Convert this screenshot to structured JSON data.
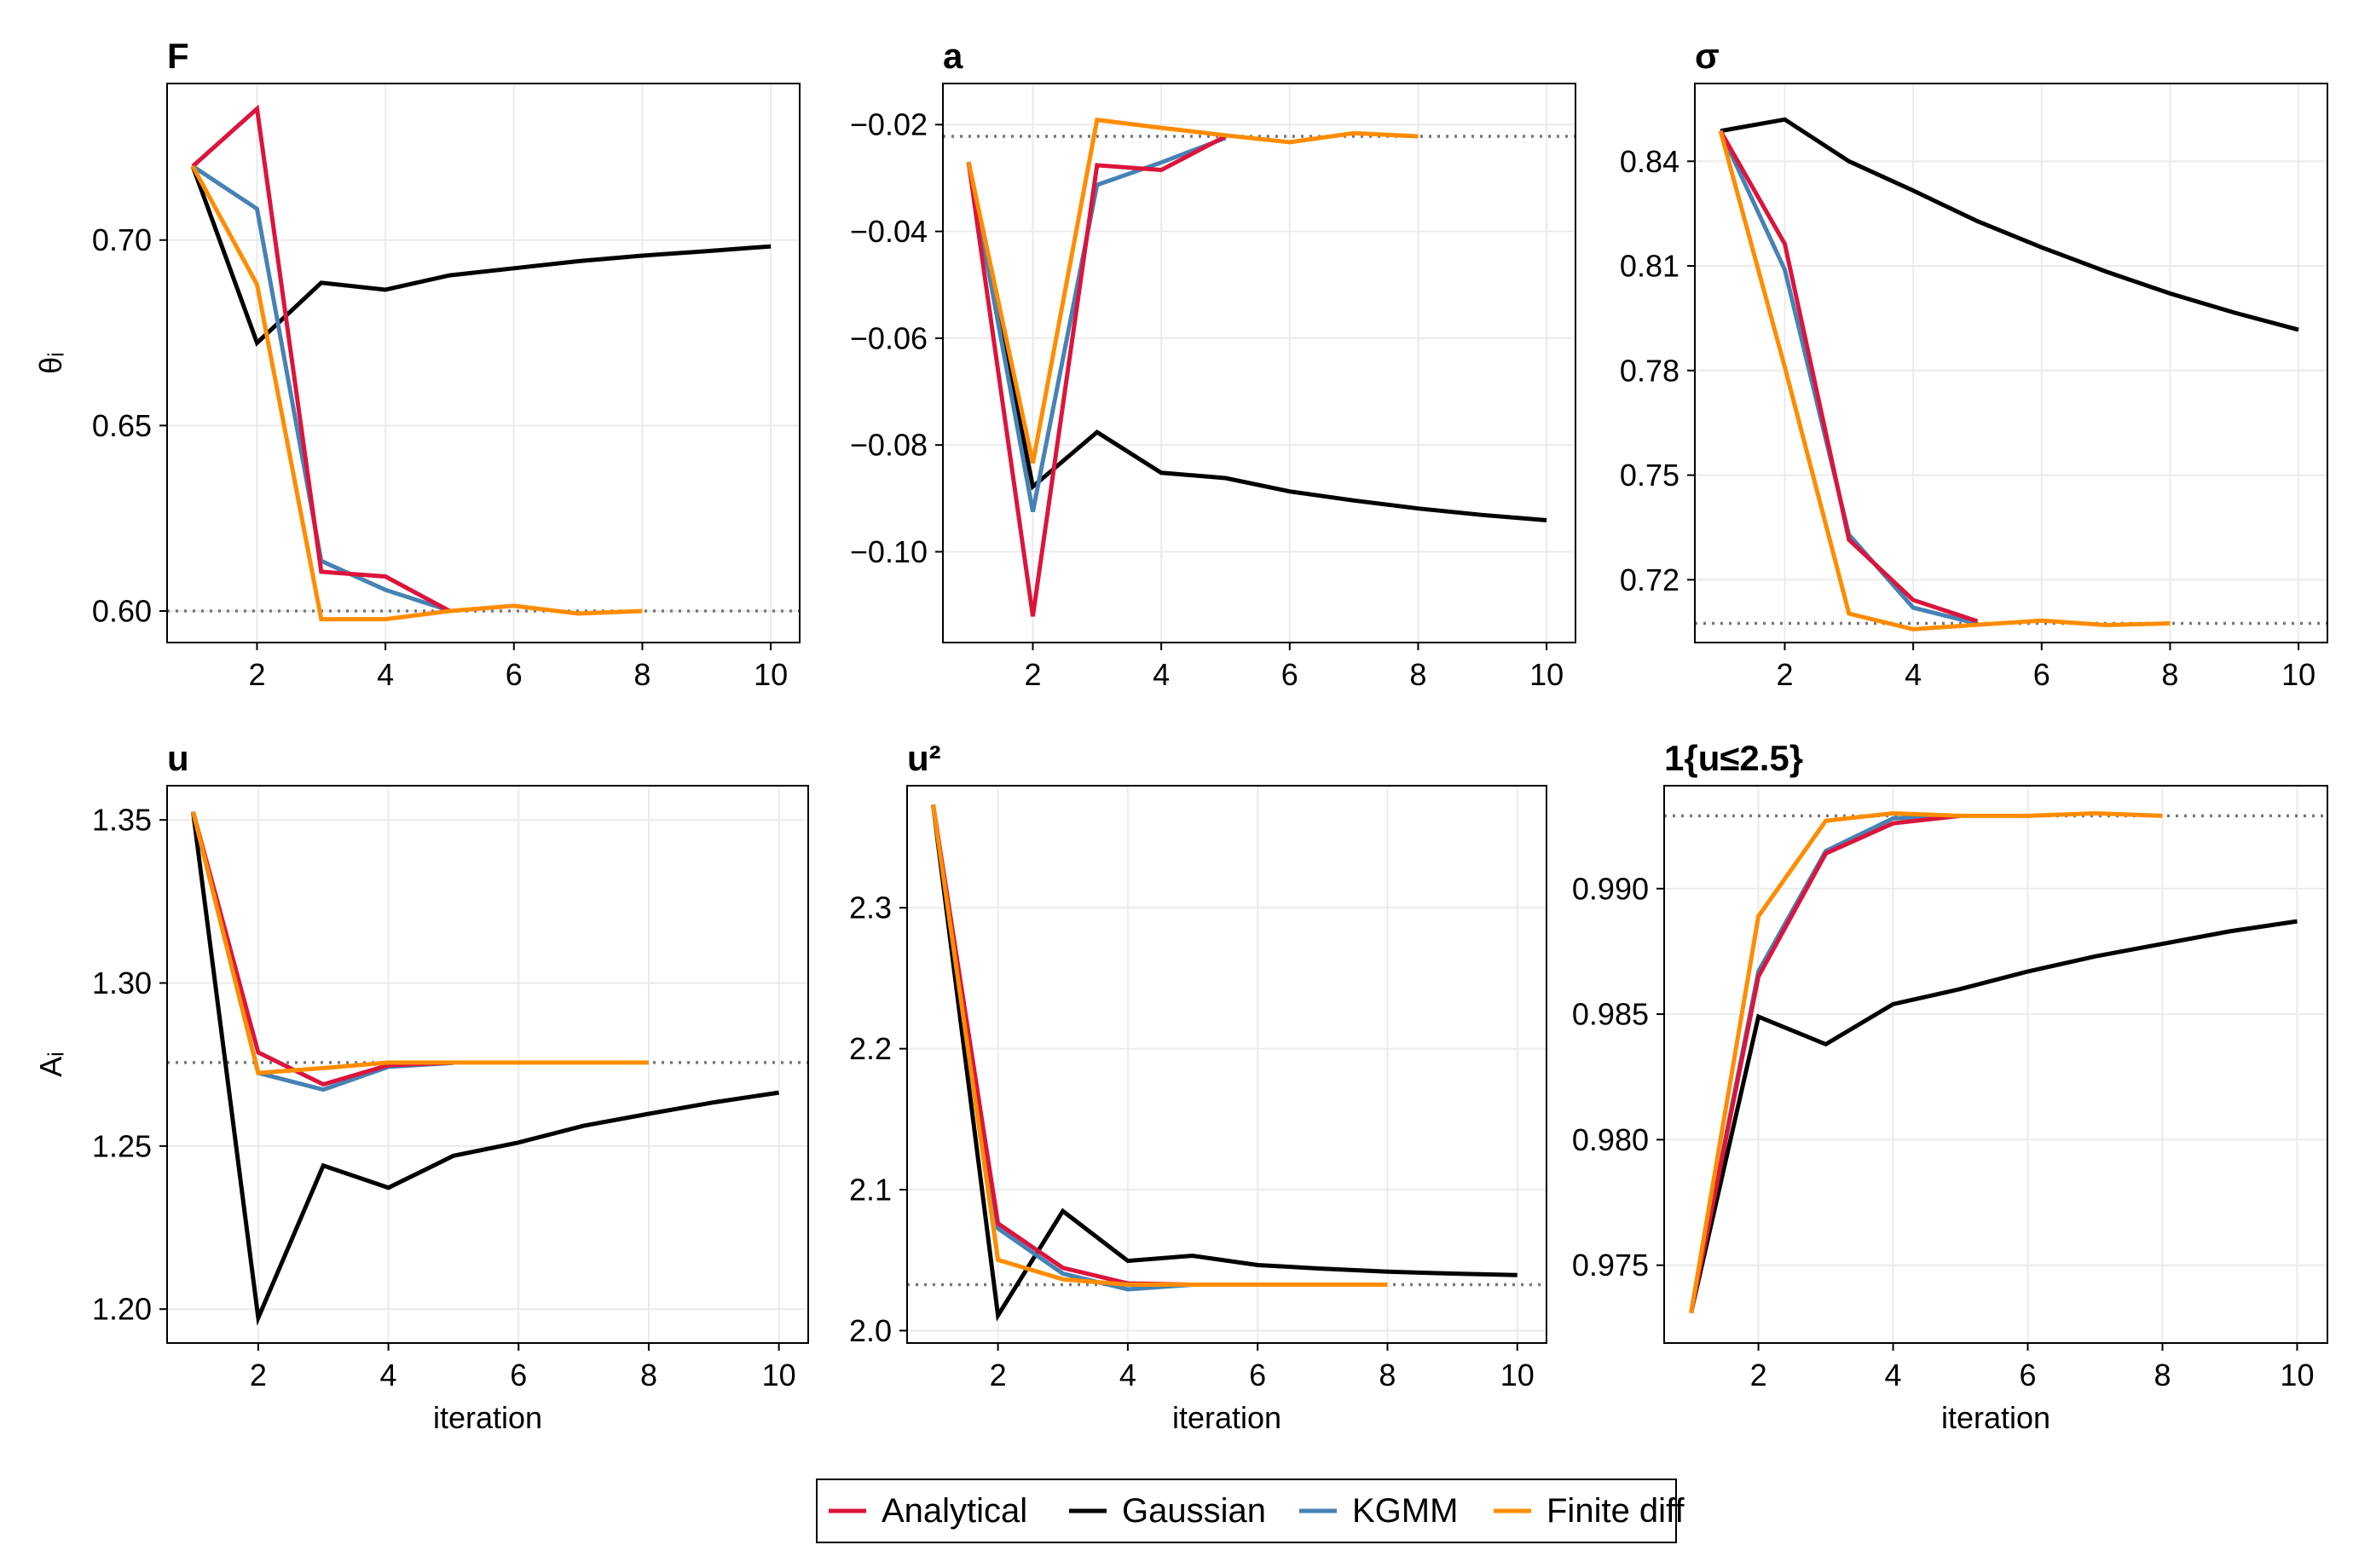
{
  "colors": {
    "Analytical": "#dc143c",
    "Gaussian": "#000000",
    "KGMM": "#4682b4",
    "Finite diff": "#ff8c00",
    "reference": "#777777"
  },
  "legend": {
    "entries": [
      "Analytical",
      "Gaussian",
      "KGMM",
      "Finite diff"
    ],
    "placement": "bottom-center"
  },
  "chart_data": [
    {
      "type": "line",
      "title": "F",
      "xlabel": "",
      "ylabel": "θᵢ",
      "xlim": [
        0.6,
        10.45
      ],
      "ylim": [
        0.5915,
        0.7422
      ],
      "xticks": [
        2,
        4,
        6,
        8,
        10
      ],
      "xtick_labels": [
        "2",
        "4",
        "6",
        "8",
        "10"
      ],
      "yticks": [
        0.6,
        0.65,
        0.7
      ],
      "ytick_labels": [
        "0.60",
        "0.65",
        "0.70"
      ],
      "reference": 0.6,
      "series": [
        {
          "name": "Analytical",
          "x": [
            1,
            2,
            3,
            4,
            5
          ],
          "values": [
            0.7199,
            0.7354,
            0.6106,
            0.6093,
            0.6
          ]
        },
        {
          "name": "Gaussian",
          "x": [
            1,
            2,
            3,
            4,
            5,
            6,
            7,
            8,
            9,
            10
          ],
          "values": [
            0.7199,
            0.6723,
            0.6885,
            0.6866,
            0.6905,
            0.6924,
            0.6943,
            0.6958,
            0.697,
            0.6983
          ]
        },
        {
          "name": "KGMM",
          "x": [
            1,
            2,
            3,
            4,
            5
          ],
          "values": [
            0.7199,
            0.7084,
            0.6135,
            0.6057,
            0.6001
          ]
        },
        {
          "name": "Finite diff",
          "x": [
            1,
            2,
            3,
            4,
            5,
            6,
            7,
            8
          ],
          "values": [
            0.7199,
            0.688,
            0.5978,
            0.5978,
            0.6,
            0.6014,
            0.5993,
            0.6
          ]
        }
      ]
    },
    {
      "type": "line",
      "title": "a",
      "xlabel": "",
      "ylabel": "",
      "xlim": [
        0.6,
        10.45
      ],
      "ylim": [
        -0.117,
        -0.0123
      ],
      "xticks": [
        2,
        4,
        6,
        8,
        10
      ],
      "xtick_labels": [
        "2",
        "4",
        "6",
        "8",
        "10"
      ],
      "yticks": [
        -0.1,
        -0.08,
        -0.06,
        -0.04,
        -0.02
      ],
      "ytick_labels": [
        "−0.10",
        "−0.08",
        "−0.06",
        "−0.04",
        "−0.02"
      ],
      "reference": -0.0222,
      "series": [
        {
          "name": "Analytical",
          "x": [
            1,
            2,
            3,
            4,
            5
          ],
          "values": [
            -0.027,
            -0.1121,
            -0.0276,
            -0.0285,
            -0.0222
          ]
        },
        {
          "name": "Gaussian",
          "x": [
            1,
            2,
            3,
            4,
            5,
            6,
            7,
            8,
            9,
            10
          ],
          "values": [
            -0.027,
            -0.0878,
            -0.0776,
            -0.0852,
            -0.0862,
            -0.0887,
            -0.0904,
            -0.0919,
            -0.0931,
            -0.0941
          ]
        },
        {
          "name": "KGMM",
          "x": [
            1,
            2,
            3,
            4,
            5
          ],
          "values": [
            -0.027,
            -0.0925,
            -0.0313,
            -0.0271,
            -0.0225
          ]
        },
        {
          "name": "Finite diff",
          "x": [
            1,
            2,
            3,
            4,
            5,
            6,
            7,
            8
          ],
          "values": [
            -0.027,
            -0.0834,
            -0.0191,
            -0.0206,
            -0.022,
            -0.0233,
            -0.0216,
            -0.0222
          ]
        }
      ]
    },
    {
      "type": "line",
      "title": "σ",
      "xlabel": "",
      "ylabel": "",
      "xlim": [
        0.6,
        10.45
      ],
      "ylim": [
        0.702,
        0.8623
      ],
      "xticks": [
        2,
        4,
        6,
        8,
        10
      ],
      "xtick_labels": [
        "2",
        "4",
        "6",
        "8",
        "10"
      ],
      "yticks": [
        0.72,
        0.75,
        0.78,
        0.81,
        0.84
      ],
      "ytick_labels": [
        "0.72",
        "0.75",
        "0.78",
        "0.81",
        "0.84"
      ],
      "reference": 0.7075,
      "series": [
        {
          "name": "Analytical",
          "x": [
            1,
            2,
            3,
            4,
            5
          ],
          "values": [
            0.8487,
            0.8163,
            0.7315,
            0.7142,
            0.7081
          ]
        },
        {
          "name": "Gaussian",
          "x": [
            1,
            2,
            3,
            4,
            5,
            6,
            7,
            8,
            9,
            10
          ],
          "values": [
            0.8487,
            0.852,
            0.84,
            0.8316,
            0.8228,
            0.8153,
            0.8084,
            0.8021,
            0.7966,
            0.7917
          ]
        },
        {
          "name": "KGMM",
          "x": [
            1,
            2,
            3,
            4,
            5
          ],
          "values": [
            0.8487,
            0.8089,
            0.7329,
            0.712,
            0.7074
          ]
        },
        {
          "name": "Finite diff",
          "x": [
            1,
            2,
            3,
            4,
            5,
            6,
            7,
            8
          ],
          "values": [
            0.8487,
            0.781,
            0.7103,
            0.7058,
            0.7071,
            0.7083,
            0.707,
            0.7075
          ]
        }
      ]
    },
    {
      "type": "line",
      "title": "u",
      "xlabel": "iteration",
      "ylabel": "Aᵢ",
      "xlim": [
        0.6,
        10.45
      ],
      "ylim": [
        1.1896,
        1.3605
      ],
      "xticks": [
        2,
        4,
        6,
        8,
        10
      ],
      "xtick_labels": [
        "2",
        "4",
        "6",
        "8",
        "10"
      ],
      "yticks": [
        1.2,
        1.25,
        1.3,
        1.35
      ],
      "ytick_labels": [
        "1.20",
        "1.25",
        "1.30",
        "1.35"
      ],
      "reference": 1.2756,
      "series": [
        {
          "name": "Analytical",
          "x": [
            1,
            2,
            3,
            4,
            5
          ],
          "values": [
            1.3525,
            1.2787,
            1.2689,
            1.2748,
            1.2756
          ]
        },
        {
          "name": "Gaussian",
          "x": [
            1,
            2,
            3,
            4,
            5,
            6,
            7,
            8,
            9,
            10
          ],
          "values": [
            1.3525,
            1.1973,
            1.244,
            1.2372,
            1.247,
            1.2511,
            1.2562,
            1.2599,
            1.2634,
            1.2664
          ]
        },
        {
          "name": "KGMM",
          "x": [
            1,
            2,
            3,
            4,
            5
          ],
          "values": [
            1.3525,
            1.2724,
            1.2673,
            1.2743,
            1.2755
          ]
        },
        {
          "name": "Finite diff",
          "x": [
            1,
            2,
            3,
            4,
            5,
            6,
            7,
            8
          ],
          "values": [
            1.3525,
            1.2724,
            1.2739,
            1.2756,
            1.2756,
            1.2756,
            1.2756,
            1.2756
          ]
        }
      ]
    },
    {
      "type": "line",
      "title": "u²",
      "xlabel": "iteration",
      "ylabel": "",
      "xlim": [
        0.6,
        10.45
      ],
      "ylim": [
        1.9912,
        2.3866
      ],
      "xticks": [
        2,
        4,
        6,
        8,
        10
      ],
      "xtick_labels": [
        "2",
        "4",
        "6",
        "8",
        "10"
      ],
      "yticks": [
        2.0,
        2.1,
        2.2,
        2.3
      ],
      "ytick_labels": [
        "2.0",
        "2.1",
        "2.2",
        "2.3"
      ],
      "reference": 2.0326,
      "series": [
        {
          "name": "Analytical",
          "x": [
            1,
            2,
            3,
            4,
            5
          ],
          "values": [
            2.3731,
            2.076,
            2.0445,
            2.0335,
            2.0326
          ]
        },
        {
          "name": "Gaussian",
          "x": [
            1,
            2,
            3,
            4,
            5,
            6,
            7,
            8,
            9,
            10
          ],
          "values": [
            2.3731,
            2.0108,
            2.0848,
            2.0495,
            2.0531,
            2.0465,
            2.044,
            2.0418,
            2.0405,
            2.0394
          ]
        },
        {
          "name": "KGMM",
          "x": [
            1,
            2,
            3,
            4,
            5
          ],
          "values": [
            2.3731,
            2.0726,
            2.0404,
            2.0293,
            2.0326
          ]
        },
        {
          "name": "Finite diff",
          "x": [
            1,
            2,
            3,
            4,
            5,
            6,
            7,
            8
          ],
          "values": [
            2.3731,
            2.0502,
            2.0364,
            2.0326,
            2.0326,
            2.0326,
            2.0326,
            2.0326
          ]
        }
      ]
    },
    {
      "type": "line",
      "title": "1{u≤2.5}",
      "xlabel": "iteration",
      "ylabel": "",
      "xlim": [
        0.6,
        10.45
      ],
      "ylim": [
        0.9719,
        0.9941
      ],
      "xticks": [
        2,
        4,
        6,
        8,
        10
      ],
      "xtick_labels": [
        "2",
        "4",
        "6",
        "8",
        "10"
      ],
      "yticks": [
        0.975,
        0.98,
        0.985,
        0.99
      ],
      "ytick_labels": [
        "0.975",
        "0.980",
        "0.985",
        "0.990"
      ],
      "reference": 0.9929,
      "series": [
        {
          "name": "Analytical",
          "x": [
            1,
            2,
            3,
            4,
            5
          ],
          "values": [
            0.9731,
            0.9865,
            0.9914,
            0.9926,
            0.9929
          ]
        },
        {
          "name": "Gaussian",
          "x": [
            1,
            2,
            3,
            4,
            5,
            6,
            7,
            8,
            9,
            10
          ],
          "values": [
            0.9731,
            0.9849,
            0.9838,
            0.9854,
            0.986,
            0.9867,
            0.9873,
            0.9878,
            0.9883,
            0.9887
          ]
        },
        {
          "name": "KGMM",
          "x": [
            1,
            2,
            3,
            4,
            5
          ],
          "values": [
            0.9731,
            0.9867,
            0.9915,
            0.9928,
            0.9929
          ]
        },
        {
          "name": "Finite diff",
          "x": [
            1,
            2,
            3,
            4,
            5,
            6,
            7,
            8
          ],
          "values": [
            0.9731,
            0.9889,
            0.9927,
            0.993,
            0.9929,
            0.9929,
            0.993,
            0.9929
          ]
        }
      ]
    }
  ]
}
